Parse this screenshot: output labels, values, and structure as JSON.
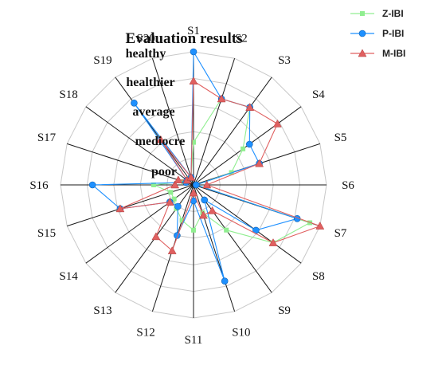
{
  "chart_data": {
    "type": "radar",
    "title": "Evaluation results",
    "categories": [
      "S1",
      "S2",
      "S3",
      "S4",
      "S5",
      "S6",
      "S7",
      "S8",
      "S9",
      "S10",
      "S11",
      "S12",
      "S13",
      "S14",
      "S15",
      "S16",
      "S17",
      "S18",
      "S19",
      "S20"
    ],
    "levels": [
      "poor",
      "mediocre",
      "average",
      "healthier",
      "healthy"
    ],
    "rlim": [
      0,
      5
    ],
    "grid": true,
    "legend_position": "top-right",
    "series": [
      {
        "name": "Z-IBI",
        "color": "#90ee90",
        "marker": "square",
        "values": [
          1.6,
          3.4,
          3.6,
          2.3,
          1.5,
          0.1,
          4.6,
          3.7,
          2.1,
          1.1,
          1.7,
          1.4,
          1.1,
          0.9,
          0.9,
          1.5,
          0.4,
          0.3,
          0.3,
          0.3
        ]
      },
      {
        "name": "P-IBI",
        "color": "#1e90ff",
        "marker": "circle",
        "values": [
          5.0,
          3.4,
          3.6,
          2.6,
          2.6,
          0.1,
          4.1,
          2.9,
          0.7,
          3.8,
          0.6,
          2.0,
          1.0,
          1.1,
          2.9,
          3.8,
          0.3,
          0.3,
          3.8,
          0.3
        ]
      },
      {
        "name": "M-IBI",
        "color": "#e06060",
        "marker": "triangle",
        "values": [
          3.9,
          3.4,
          3.6,
          3.9,
          2.6,
          0.5,
          5.0,
          3.7,
          1.2,
          1.2,
          0.3,
          2.6,
          2.4,
          1.1,
          2.9,
          0.7,
          0.6,
          0.3,
          2.1,
          0.3
        ]
      }
    ]
  }
}
